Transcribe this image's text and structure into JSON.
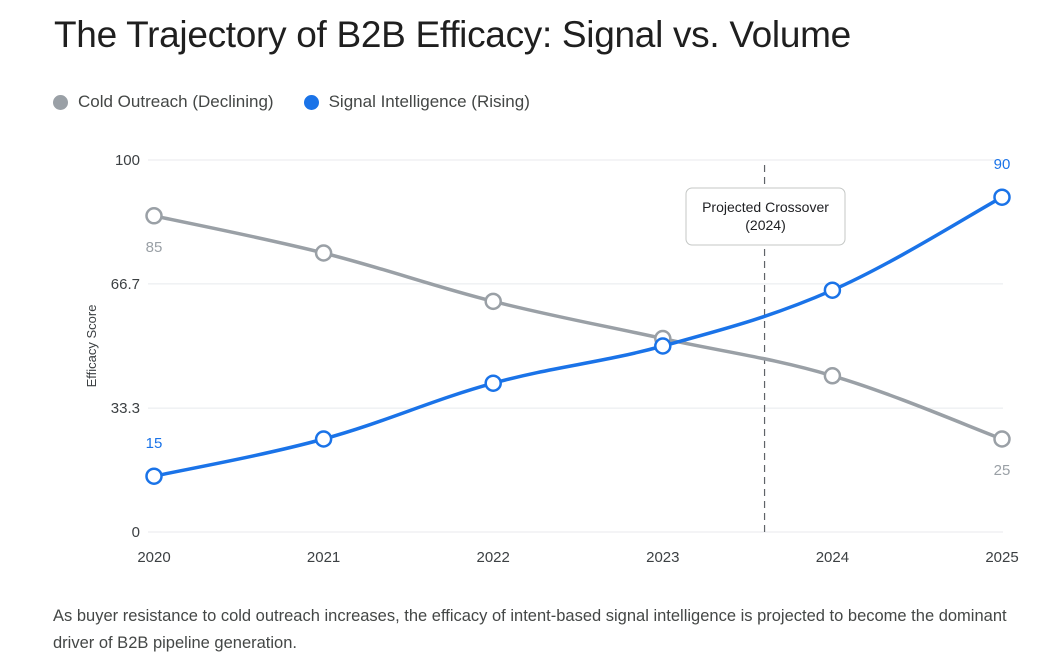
{
  "page": {
    "title": "The Trajectory of B2B Efficacy: Signal vs. Volume",
    "caption": "As buyer resistance to cold outreach increases, the efficacy of intent-based signal intelligence is projected to become the dominant driver of B2B pipeline generation."
  },
  "legend": [
    {
      "label": "Cold Outreach (Declining)",
      "color": "#9aa0a6"
    },
    {
      "label": "Signal Intelligence (Rising)",
      "color": "#1a73e8"
    }
  ],
  "chart_data": {
    "type": "line",
    "title": "The Trajectory of B2B Efficacy: Signal vs. Volume",
    "xlabel": "",
    "ylabel": "Efficacy Score",
    "x": [
      "2020",
      "2021",
      "2022",
      "2023",
      "2024",
      "2025"
    ],
    "ylim": [
      0,
      100
    ],
    "yticks": [
      0,
      33.3,
      66.7,
      100
    ],
    "ytick_labels": [
      "0",
      "33.3",
      "66.7",
      "100"
    ],
    "grid": true,
    "legend_position": "top-left",
    "series": [
      {
        "name": "Cold Outreach (Declining)",
        "color": "#9aa0a6",
        "values": [
          85,
          75,
          62,
          52,
          42,
          25
        ],
        "labeled_points": [
          {
            "x": "2020",
            "label": "85",
            "position": "below"
          },
          {
            "x": "2025",
            "label": "25",
            "position": "below"
          }
        ]
      },
      {
        "name": "Signal Intelligence (Rising)",
        "color": "#1a73e8",
        "values": [
          15,
          25,
          40,
          50,
          65,
          90
        ],
        "labeled_points": [
          {
            "x": "2020",
            "label": "15",
            "position": "above"
          },
          {
            "x": "2025",
            "label": "90",
            "position": "above"
          }
        ]
      }
    ],
    "annotations": [
      {
        "type": "vertical-dashed-line",
        "x_value": 2023.6,
        "text_line1": "Projected Crossover",
        "text_line2": "(2024)"
      }
    ]
  }
}
